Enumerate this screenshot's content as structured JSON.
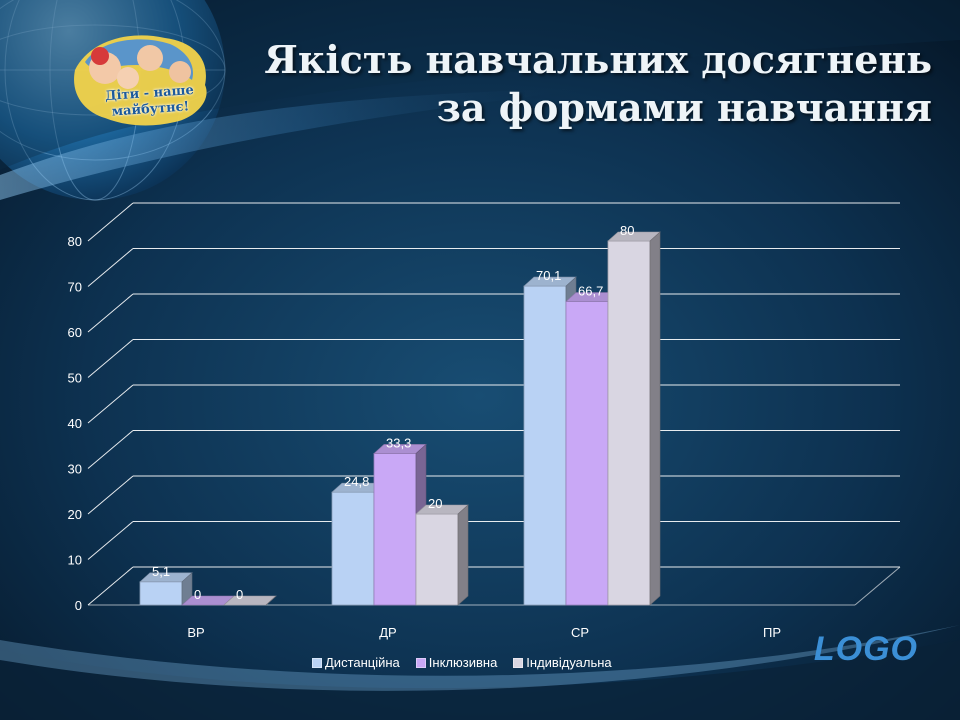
{
  "slide": {
    "title_line1": "Якість навчальних досягнень",
    "title_line2": "за формами навчання",
    "logo": "LOGO",
    "emblem_text_line1": "Діти - наше",
    "emblem_text_line2": "майбутнє!"
  },
  "colors": {
    "background_dark": "#06192b",
    "background_mid": "#0f3a5c",
    "title": "#eef4f8",
    "logo": "#3b8fd6",
    "series": [
      "#b9d2f4",
      "#c9a8f6",
      "#d9d6e2"
    ]
  },
  "chart_data": {
    "type": "bar",
    "title": "",
    "xlabel": "",
    "ylabel": "",
    "categories": [
      "ВР",
      "ДР",
      "СР",
      "ПР"
    ],
    "series": [
      {
        "name": "Дистанційна",
        "values": [
          5.1,
          24.8,
          70.1,
          null
        ],
        "labels": [
          "5,1",
          "24,8",
          "70,1",
          ""
        ]
      },
      {
        "name": "Інклюзивна",
        "values": [
          0,
          33.3,
          66.7,
          null
        ],
        "labels": [
          "0",
          "33,3",
          "66,7",
          ""
        ]
      },
      {
        "name": "Індивідуальна",
        "values": [
          0,
          20,
          80,
          null
        ],
        "labels": [
          "0",
          "20",
          "80",
          ""
        ]
      }
    ],
    "ylim": [
      0,
      80
    ],
    "yticks": [
      0,
      10,
      20,
      30,
      40,
      50,
      60,
      70,
      80
    ],
    "grid": true,
    "legend_position": "bottom",
    "style": "3d-clustered-column"
  }
}
